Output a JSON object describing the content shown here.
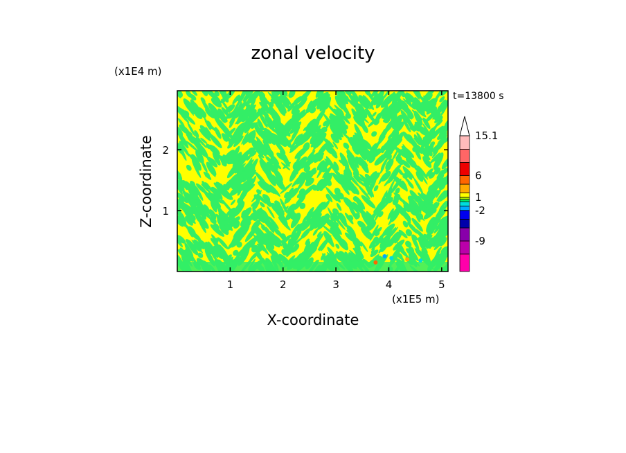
{
  "chart_data": {
    "type": "heatmap",
    "title": "zonal velocity",
    "xlabel": "X-coordinate",
    "ylabel": "Z-coordinate",
    "x_unit": "(x1E5 m)",
    "y_unit": "(x1E4 m)",
    "time_label": "t=13800 s",
    "xlim": [
      0,
      5.12
    ],
    "ylim": [
      0,
      2.97
    ],
    "x_ticks": [
      "1",
      "2",
      "3",
      "4",
      "5"
    ],
    "y_ticks": [
      "1",
      "2"
    ],
    "colorbar": {
      "labels": [
        {
          "text": "15.1",
          "value": 15.1
        },
        {
          "text": "6",
          "value": 6
        },
        {
          "text": "1",
          "value": 1
        },
        {
          "text": "-2",
          "value": -2
        },
        {
          "text": "-9",
          "value": -9
        }
      ],
      "bands": [
        {
          "color": "#ff00aa",
          "from": -16,
          "to": -12
        },
        {
          "color": "#bb00aa",
          "from": -12,
          "to": -9
        },
        {
          "color": "#8800aa",
          "from": -9,
          "to": -6
        },
        {
          "color": "#0000aa",
          "from": -6,
          "to": -4
        },
        {
          "color": "#0000ee",
          "from": -4,
          "to": -2
        },
        {
          "color": "#00aaff",
          "from": -2,
          "to": -1
        },
        {
          "color": "#00dddd",
          "from": -1,
          "to": 0
        },
        {
          "color": "#00ee66",
          "from": 0,
          "to": 0.5
        },
        {
          "color": "#aaee00",
          "from": 0.5,
          "to": 1
        },
        {
          "color": "#ffff00",
          "from": 1,
          "to": 2
        },
        {
          "color": "#ffaa00",
          "from": 2,
          "to": 4
        },
        {
          "color": "#ff6600",
          "from": 4,
          "to": 6
        },
        {
          "color": "#ee0000",
          "from": 6,
          "to": 9
        },
        {
          "color": "#ff6666",
          "from": 9,
          "to": 12
        },
        {
          "color": "#ffbbbb",
          "from": 12,
          "to": 15.1
        }
      ]
    },
    "field_colors": {
      "positive": "#ffff00",
      "negative": "#33ee66"
    }
  }
}
